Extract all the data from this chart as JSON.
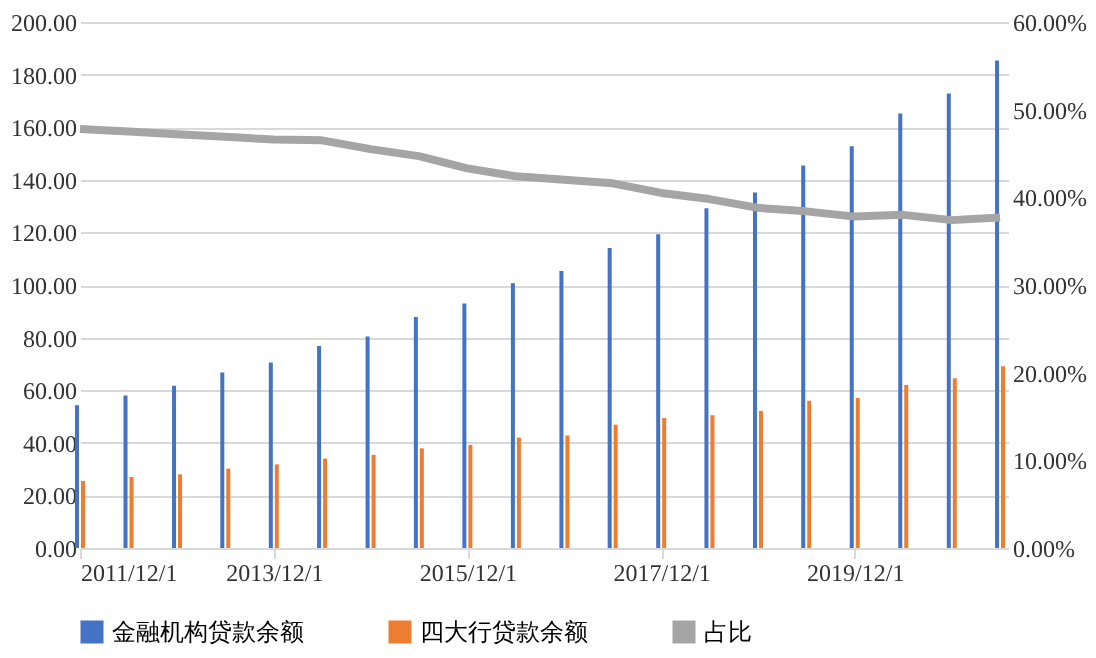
{
  "chart_data": {
    "type": "bar",
    "x": [
      "2011-12-01",
      "2012-06-01",
      "2012-12-01",
      "2013-06-01",
      "2013-12-01",
      "2014-06-01",
      "2014-12-01",
      "2015-06-01",
      "2015-12-01",
      "2016-06-01",
      "2016-12-01",
      "2017-06-01",
      "2017-12-01",
      "2018-06-01",
      "2018-12-01",
      "2019-06-01",
      "2019-12-01",
      "2020-06-01",
      "2020-12-01",
      "2021-06-01"
    ],
    "series": [
      {
        "name": "金融机构贷款余额",
        "color": "#4472c4",
        "values": [
          54.3,
          58,
          61.7,
          66.7,
          70.5,
          76.8,
          80.4,
          87.8,
          93,
          100.7,
          105.3,
          114.1,
          119.3,
          129.2,
          135.2,
          145.4,
          152.8,
          165.2,
          172.8,
          185.4
        ]
      },
      {
        "name": "四大行贷款余额",
        "color": "#ed7d31",
        "values": [
          25.5,
          27,
          28,
          30.2,
          31.8,
          34,
          35.4,
          37.9,
          39.2,
          42,
          42.8,
          46.9,
          49.4,
          50.5,
          52.1,
          56,
          57,
          62,
          64.5,
          69.1
        ]
      },
      {
        "name": "占比",
        "color": "#a5a5a5",
        "type": "line",
        "axis": "y2",
        "values": [
          47.8,
          47.5,
          47.2,
          46.9,
          46.6,
          46.5,
          45.5,
          44.7,
          43.3,
          42.4,
          42.0,
          41.6,
          40.5,
          39.8,
          38.8,
          38.4,
          37.8,
          38.0,
          37.4,
          37.7
        ]
      }
    ],
    "xlim": [
      "2011-12-01",
      "2021-07-01"
    ],
    "xticks": [
      {
        "value": "2011-12-01",
        "label": "2011/12/1"
      },
      {
        "value": "2013-12-01",
        "label": "2013/12/1"
      },
      {
        "value": "2015-12-01",
        "label": "2015/12/1"
      },
      {
        "value": "2017-12-01",
        "label": "2017/12/1"
      },
      {
        "value": "2019-12-01",
        "label": "2019/12/1"
      }
    ],
    "ylim": [
      0,
      200
    ],
    "yticks": [
      {
        "value": 0,
        "label": "0.00"
      },
      {
        "value": 20,
        "label": "20.00"
      },
      {
        "value": 40,
        "label": "40.00"
      },
      {
        "value": 60,
        "label": "60.00"
      },
      {
        "value": 80,
        "label": "80.00"
      },
      {
        "value": 100,
        "label": "100.00"
      },
      {
        "value": 120,
        "label": "120.00"
      },
      {
        "value": 140,
        "label": "140.00"
      },
      {
        "value": 160,
        "label": "160.00"
      },
      {
        "value": 180,
        "label": "180.00"
      },
      {
        "value": 200,
        "label": "200.00"
      }
    ],
    "y2lim": [
      0,
      60
    ],
    "y2ticks": [
      {
        "value": 0,
        "label": "0.00%"
      },
      {
        "value": 10,
        "label": "10.00%"
      },
      {
        "value": 20,
        "label": "20.00%"
      },
      {
        "value": 30,
        "label": "30.00%"
      },
      {
        "value": 40,
        "label": "40.00%"
      },
      {
        "value": 50,
        "label": "50.00%"
      },
      {
        "value": 60,
        "label": "60.00%"
      }
    ],
    "grid": "y",
    "legend": "bottom",
    "marker": "none"
  }
}
